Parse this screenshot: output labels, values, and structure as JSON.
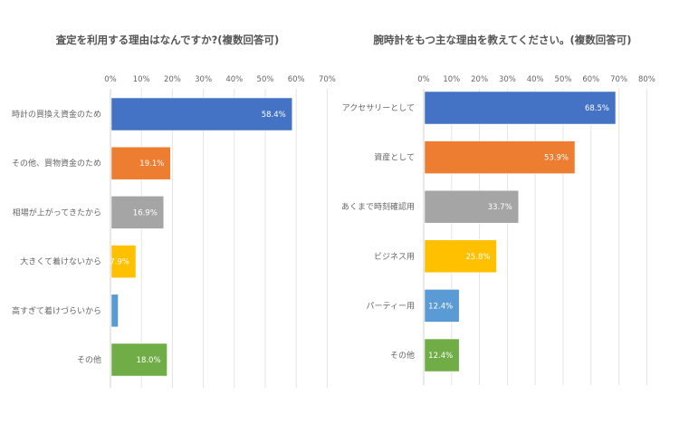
{
  "chart_data": [
    {
      "type": "bar",
      "orientation": "horizontal",
      "title": "査定を利用する理由はなんですか?(複数回答可)",
      "categories": [
        "時計の買換え資金のため",
        "その他、買物資金のため",
        "相場が上がってきたから",
        "大きくて着けないから",
        "高すぎて着けづらいから",
        "その他"
      ],
      "values": [
        58.4,
        19.1,
        16.9,
        7.9,
        2.2,
        18.0
      ],
      "data_labels": [
        "58.4%",
        "19.1%",
        "16.9%",
        "7.9%",
        "",
        "18.0%"
      ],
      "colors": [
        "#4472c4",
        "#ed7d31",
        "#a5a5a5",
        "#ffc000",
        "#5b9bd5",
        "#70ad47"
      ],
      "xlim": [
        0,
        70
      ],
      "ticks": [
        "0%",
        "10%",
        "20%",
        "30%",
        "40%",
        "50%",
        "60%",
        "70%"
      ],
      "grid": true,
      "axis_position": "top"
    },
    {
      "type": "bar",
      "orientation": "horizontal",
      "title": "腕時計をもつ主な理由を教えてください。(複数回答可)",
      "categories": [
        "アクセサリーとして",
        "資産として",
        "あくまで時刻確認用",
        "ビジネス用",
        "パーティー用",
        "その他"
      ],
      "values": [
        68.5,
        53.9,
        33.7,
        25.8,
        12.4,
        12.4
      ],
      "data_labels": [
        "68.5%",
        "53.9%",
        "33.7%",
        "25.8%",
        "12.4%",
        "12.4%"
      ],
      "colors": [
        "#4472c4",
        "#ed7d31",
        "#a5a5a5",
        "#ffc000",
        "#5b9bd5",
        "#70ad47"
      ],
      "xlim": [
        0,
        80
      ],
      "ticks": [
        "0%",
        "10%",
        "20%",
        "30%",
        "40%",
        "50%",
        "60%",
        "70%",
        "80%"
      ],
      "grid": true,
      "axis_position": "top"
    }
  ]
}
